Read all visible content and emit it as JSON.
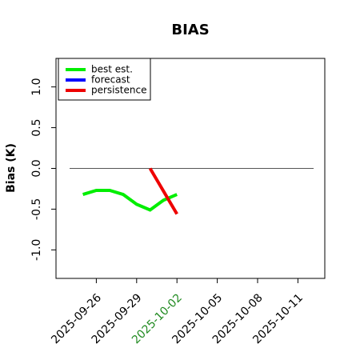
{
  "chart_data": {
    "type": "line",
    "title": "BIAS",
    "y_label": "Bias (K)",
    "x": [
      "2025-09-25",
      "2025-09-26",
      "2025-09-27",
      "2025-09-28",
      "2025-09-29",
      "2025-09-30",
      "2025-10-01",
      "2025-10-02"
    ],
    "series": [
      {
        "name": "best est.",
        "color": "#00ee00",
        "values": [
          -0.32,
          -0.27,
          -0.27,
          -0.32,
          -0.44,
          -0.51,
          -0.39,
          -0.32
        ]
      },
      {
        "name": "forecast",
        "color": "#0000ff",
        "values": [
          null,
          null,
          null,
          null,
          null,
          null,
          null,
          null
        ]
      },
      {
        "name": "persistence",
        "color": "#ee0000",
        "values": [
          null,
          null,
          null,
          null,
          null,
          0.0,
          -0.28,
          -0.56
        ]
      }
    ],
    "hline": 0,
    "xlim": [
      "2025-09-23",
      "2025-10-13"
    ],
    "xticks": [
      "2025-09-26",
      "2025-09-29",
      "2025-10-02",
      "2025-10-05",
      "2025-10-08",
      "2025-10-11"
    ],
    "xtick_colors": [
      "#000000",
      "#000000",
      "#228b22",
      "#000000",
      "#000000",
      "#000000"
    ],
    "ylim": [
      -1.35,
      1.35
    ],
    "yticks": [
      {
        "value": -1,
        "label": "-1.0"
      },
      {
        "value": -0.5,
        "label": "-0.5"
      },
      {
        "value": 0,
        "label": "0.0"
      },
      {
        "value": 0.5,
        "label": "0.5"
      },
      {
        "value": 1,
        "label": "1.0"
      }
    ],
    "legend": "upper left"
  }
}
